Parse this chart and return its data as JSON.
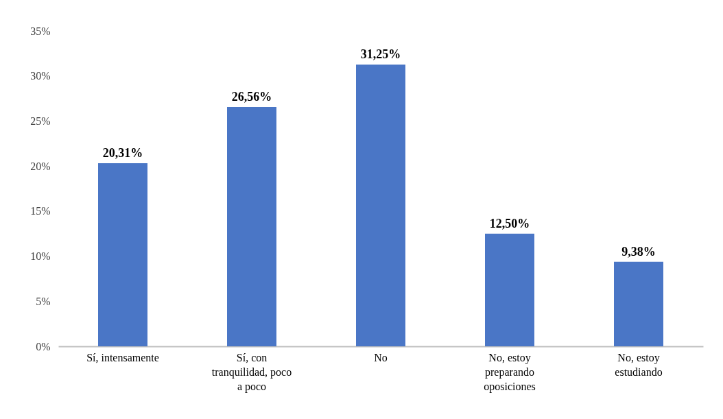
{
  "chart_data": {
    "type": "bar",
    "categories": [
      "Sí, intensamente",
      "Sí, con tranquilidad, poco a poco",
      "No",
      "No, estoy preparando oposiciones",
      "No, estoy estudiando"
    ],
    "values": [
      20.31,
      26.56,
      31.25,
      12.5,
      9.38
    ],
    "value_labels": [
      "20,31%",
      "26,56%",
      "31,25%",
      "12,50%",
      "9,38%"
    ],
    "color": "#4a76c6",
    "ylim": [
      0,
      35
    ],
    "yticks": [
      {
        "value": 0,
        "label": "0%"
      },
      {
        "value": 5,
        "label": "5%"
      },
      {
        "value": 10,
        "label": "10%"
      },
      {
        "value": 15,
        "label": "15%"
      },
      {
        "value": 20,
        "label": "20%"
      },
      {
        "value": 25,
        "label": "25%"
      },
      {
        "value": 30,
        "label": "30%"
      },
      {
        "value": 35,
        "label": "35%"
      }
    ],
    "grid": false
  }
}
